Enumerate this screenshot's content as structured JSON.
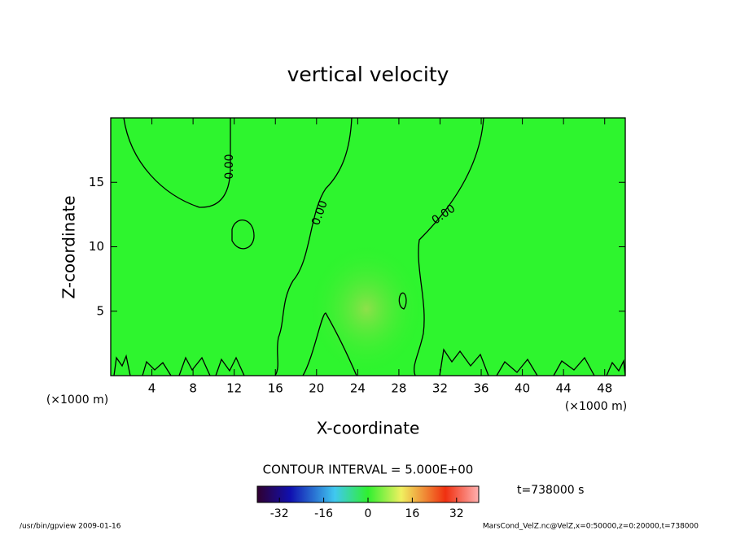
{
  "chart_data": {
    "type": "contour",
    "title": "vertical velocity",
    "x_label": "X-coordinate",
    "y_label": "Z-coordinate",
    "x_unit": "(×1000 m)",
    "y_unit": "(×1000 m)",
    "xlim": [
      0,
      50
    ],
    "xticks": [
      4,
      8,
      12,
      16,
      20,
      24,
      28,
      32,
      36,
      40,
      44,
      48
    ],
    "ylim": [
      0,
      20
    ],
    "yticks": [
      5,
      10,
      15
    ],
    "contour_labels": [
      "0.00",
      "0.00",
      "0.00"
    ],
    "contour_interval": "CONTOUR INTERVAL = 5.000E+00",
    "colorbar": {
      "lim": [
        -40,
        40
      ],
      "ticks": [
        -32,
        -16,
        0,
        16,
        32
      ]
    },
    "time": "t=738000 s",
    "footer_left": "/usr/bin/gpview  2009-01-16",
    "footer_right": "MarsCond_VelZ.nc@VelZ,x=0:50000,z=0:20000,t=738000"
  }
}
